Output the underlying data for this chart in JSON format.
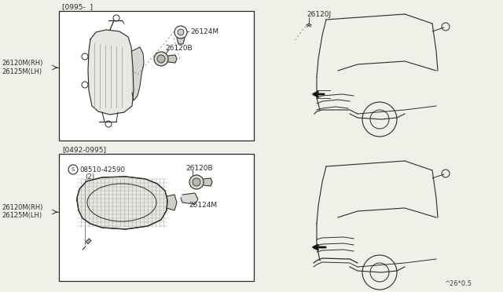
{
  "bg_color": "#f0efe8",
  "line_color": "#2a2a2a",
  "box1_label": "[0995-  ]",
  "box2_label": "[0492-0995]",
  "left_label1_top": "26120M(RH)",
  "left_label1_bot": "26125M(LH)",
  "left_label2_top": "26120M(RH)",
  "left_label2_bot": "26125M(LH)",
  "part_26124M_1": "26124M",
  "part_26120B_1": "26120B",
  "part_26120B_2": "26120B",
  "part_26124M_2": "26124M",
  "part_08510": "08510-42590",
  "part_08510_qty": "(2)",
  "part_26120J": "26120J",
  "footnote": "^26*0.5"
}
